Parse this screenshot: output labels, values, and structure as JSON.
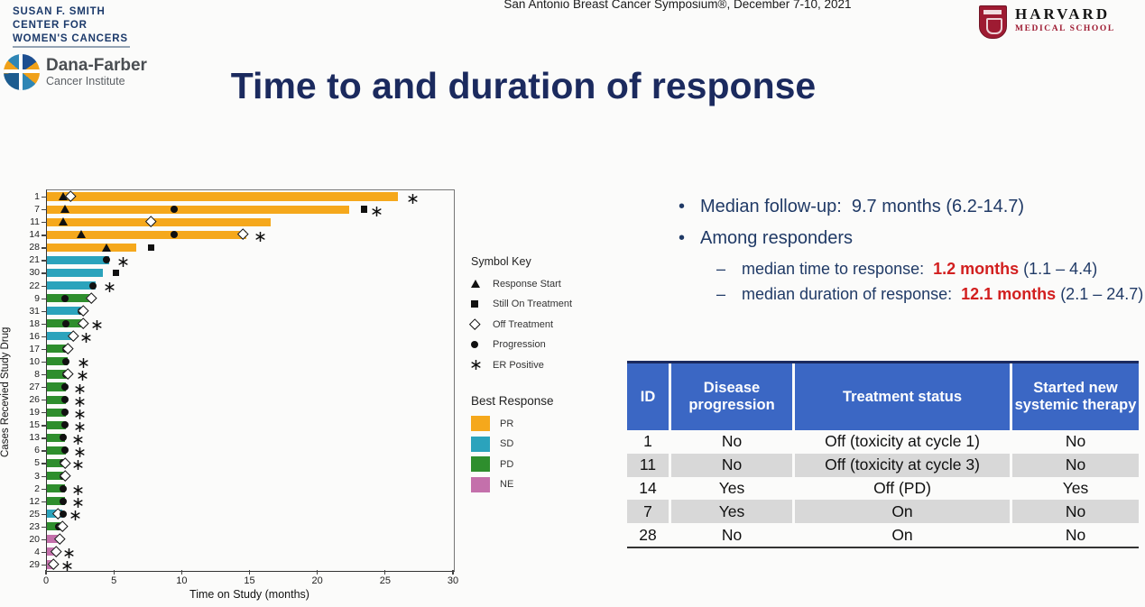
{
  "slide": {
    "conference_line": "San Antonio Breast Cancer Symposium®, December 7-10, 2021",
    "title": "Time to and duration of response",
    "bullet_glyph": "•",
    "dash_glyph": "–"
  },
  "logos": {
    "smith_center_lines": [
      "SUSAN F. SMITH",
      "CENTER FOR",
      "WOMEN'S CANCERS"
    ],
    "dana_farber": {
      "name": "Dana-Farber",
      "subtitle": "Cancer Institute"
    },
    "harvard": {
      "name": "HARVARD",
      "subtitle": "MEDICAL SCHOOL"
    }
  },
  "bullets": {
    "item1": "Median follow-up:  9.7 months (6.2-14.7)",
    "item2": "Among responders",
    "sub1_prefix": "median time to response:  ",
    "sub1_value": "1.2 months",
    "sub1_suffix": " (1.1 – 4.4)",
    "sub2_prefix": "median duration of response:  ",
    "sub2_value": "12.1 months",
    "sub2_suffix": " (2.1 – 24.7)"
  },
  "chart_data": {
    "type": "bar",
    "orientation": "horizontal",
    "title": "",
    "xlabel": "Time on Study (months)",
    "ylabel": "Cases Recevied Study Drug",
    "xlim": [
      0,
      30
    ],
    "xticks": [
      0,
      5,
      10,
      15,
      20,
      25,
      30
    ],
    "grid": false,
    "colors": {
      "PR": "#f5a81c",
      "SD": "#2ba3bc",
      "PD": "#2e8e2d",
      "NE": "#c470ab"
    },
    "symbol_key": {
      "title": "Symbol Key",
      "items": [
        {
          "symbol": "triangle",
          "label": "Response Start"
        },
        {
          "symbol": "square",
          "label": "Still On Treatment"
        },
        {
          "symbol": "diamond",
          "label": "Off Treatment"
        },
        {
          "symbol": "circle",
          "label": "Progression"
        },
        {
          "symbol": "star",
          "label": "ER Positive"
        }
      ]
    },
    "best_response": {
      "title": "Best Response",
      "items": [
        "PR",
        "SD",
        "PD",
        "NE"
      ]
    },
    "rows": [
      {
        "id": "1",
        "response": "PR",
        "duration": 25.9,
        "markers": [
          {
            "t": "triangle",
            "x": 1.2
          },
          {
            "t": "diamond",
            "x": 1.8
          },
          {
            "t": "star",
            "x": 27.0
          }
        ]
      },
      {
        "id": "7",
        "response": "PR",
        "duration": 22.3,
        "markers": [
          {
            "t": "triangle",
            "x": 1.3
          },
          {
            "t": "circle",
            "x": 9.4
          },
          {
            "t": "square",
            "x": 23.4
          },
          {
            "t": "star",
            "x": 24.3
          }
        ]
      },
      {
        "id": "11",
        "response": "PR",
        "duration": 16.5,
        "markers": [
          {
            "t": "triangle",
            "x": 1.2
          },
          {
            "t": "diamond",
            "x": 7.7
          }
        ]
      },
      {
        "id": "14",
        "response": "PR",
        "duration": 14.7,
        "markers": [
          {
            "t": "triangle",
            "x": 2.5
          },
          {
            "t": "circle",
            "x": 9.4
          },
          {
            "t": "diamond",
            "x": 14.5
          },
          {
            "t": "star",
            "x": 15.7
          }
        ]
      },
      {
        "id": "28",
        "response": "PR",
        "duration": 6.6,
        "markers": [
          {
            "t": "triangle",
            "x": 4.4
          },
          {
            "t": "square",
            "x": 7.7
          }
        ]
      },
      {
        "id": "21",
        "response": "SD",
        "duration": 4.6,
        "markers": [
          {
            "t": "circle",
            "x": 4.4
          },
          {
            "t": "star",
            "x": 5.6
          }
        ]
      },
      {
        "id": "30",
        "response": "SD",
        "duration": 4.1,
        "markers": [
          {
            "t": "square",
            "x": 5.1
          }
        ]
      },
      {
        "id": "22",
        "response": "SD",
        "duration": 3.6,
        "markers": [
          {
            "t": "circle",
            "x": 3.4
          },
          {
            "t": "star",
            "x": 4.6
          }
        ]
      },
      {
        "id": "9",
        "response": "PD",
        "duration": 3.3,
        "markers": [
          {
            "t": "circle",
            "x": 1.3
          },
          {
            "t": "diamond",
            "x": 3.3
          }
        ]
      },
      {
        "id": "31",
        "response": "SD",
        "duration": 2.6,
        "markers": [
          {
            "t": "circle",
            "x": 2.5
          },
          {
            "t": "diamond",
            "x": 2.7
          }
        ]
      },
      {
        "id": "18",
        "response": "PD",
        "duration": 2.7,
        "markers": [
          {
            "t": "circle",
            "x": 1.4
          },
          {
            "t": "diamond",
            "x": 2.7
          },
          {
            "t": "star",
            "x": 3.7
          }
        ]
      },
      {
        "id": "16",
        "response": "SD",
        "duration": 2.0,
        "markers": [
          {
            "t": "diamond",
            "x": 2.0
          },
          {
            "t": "star",
            "x": 2.9
          }
        ]
      },
      {
        "id": "17",
        "response": "PD",
        "duration": 1.5,
        "markers": [
          {
            "t": "circle",
            "x": 1.4
          },
          {
            "t": "diamond",
            "x": 1.6
          }
        ]
      },
      {
        "id": "10",
        "response": "PD",
        "duration": 1.5,
        "markers": [
          {
            "t": "circle",
            "x": 1.4
          },
          {
            "t": "star",
            "x": 2.7
          }
        ]
      },
      {
        "id": "8",
        "response": "PD",
        "duration": 1.5,
        "markers": [
          {
            "t": "circle",
            "x": 1.4
          },
          {
            "t": "diamond",
            "x": 1.6
          },
          {
            "t": "star",
            "x": 2.6
          }
        ]
      },
      {
        "id": "27",
        "response": "PD",
        "duration": 1.4,
        "markers": [
          {
            "t": "circle",
            "x": 1.3
          },
          {
            "t": "star",
            "x": 2.4
          }
        ]
      },
      {
        "id": "26",
        "response": "PD",
        "duration": 1.4,
        "markers": [
          {
            "t": "circle",
            "x": 1.3
          },
          {
            "t": "star",
            "x": 2.4
          }
        ]
      },
      {
        "id": "19",
        "response": "PD",
        "duration": 1.4,
        "markers": [
          {
            "t": "circle",
            "x": 1.3
          },
          {
            "t": "star",
            "x": 2.4
          }
        ]
      },
      {
        "id": "15",
        "response": "PD",
        "duration": 1.4,
        "markers": [
          {
            "t": "circle",
            "x": 1.3
          },
          {
            "t": "star",
            "x": 2.4
          }
        ]
      },
      {
        "id": "13",
        "response": "PD",
        "duration": 1.3,
        "markers": [
          {
            "t": "circle",
            "x": 1.2
          },
          {
            "t": "star",
            "x": 2.3
          }
        ]
      },
      {
        "id": "6",
        "response": "PD",
        "duration": 1.4,
        "markers": [
          {
            "t": "circle",
            "x": 1.3
          },
          {
            "t": "star",
            "x": 2.4
          }
        ]
      },
      {
        "id": "5",
        "response": "PD",
        "duration": 1.3,
        "markers": [
          {
            "t": "circle",
            "x": 1.2
          },
          {
            "t": "diamond",
            "x": 1.4
          },
          {
            "t": "star",
            "x": 2.3
          }
        ]
      },
      {
        "id": "3",
        "response": "PD",
        "duration": 1.3,
        "markers": [
          {
            "t": "circle",
            "x": 1.2
          },
          {
            "t": "diamond",
            "x": 1.4
          }
        ]
      },
      {
        "id": "2",
        "response": "PD",
        "duration": 1.3,
        "markers": [
          {
            "t": "circle",
            "x": 1.2
          },
          {
            "t": "star",
            "x": 2.3
          }
        ]
      },
      {
        "id": "12",
        "response": "PD",
        "duration": 1.3,
        "markers": [
          {
            "t": "circle",
            "x": 1.2
          },
          {
            "t": "star",
            "x": 2.3
          }
        ]
      },
      {
        "id": "25",
        "response": "SD",
        "duration": 1.1,
        "markers": [
          {
            "t": "diamond",
            "x": 0.85
          },
          {
            "t": "circle",
            "x": 1.2
          },
          {
            "t": "star",
            "x": 2.1
          }
        ]
      },
      {
        "id": "23",
        "response": "PD",
        "duration": 1.1,
        "markers": [
          {
            "t": "circle",
            "x": 0.85
          },
          {
            "t": "diamond",
            "x": 1.2
          }
        ]
      },
      {
        "id": "20",
        "response": "NE",
        "duration": 1.0,
        "markers": [
          {
            "t": "diamond",
            "x": 1.0
          }
        ]
      },
      {
        "id": "4",
        "response": "NE",
        "duration": 0.7,
        "markers": [
          {
            "t": "diamond",
            "x": 0.7
          },
          {
            "t": "star",
            "x": 1.6
          }
        ]
      },
      {
        "id": "29",
        "response": "NE",
        "duration": 0.5,
        "markers": [
          {
            "t": "diamond",
            "x": 0.5
          },
          {
            "t": "star",
            "x": 1.5
          }
        ]
      }
    ]
  },
  "table": {
    "header_bg": "#3b67c4",
    "stripe_color": "#d8d8d8",
    "headers": [
      "ID",
      "Disease progression",
      "Treatment status",
      "Started new systemic therapy"
    ],
    "rows": [
      {
        "cells": [
          "1",
          "No",
          "Off (toxicity at cycle 1)",
          "No"
        ],
        "stripe": false
      },
      {
        "cells": [
          "11",
          "No",
          "Off (toxicity at cycle 3)",
          "No"
        ],
        "stripe": true
      },
      {
        "cells": [
          "14",
          "Yes",
          "Off (PD)",
          "Yes"
        ],
        "stripe": false
      },
      {
        "cells": [
          "7",
          "Yes",
          "On",
          "No"
        ],
        "stripe": true
      },
      {
        "cells": [
          "28",
          "No",
          "On",
          "No"
        ],
        "stripe": false
      }
    ]
  }
}
